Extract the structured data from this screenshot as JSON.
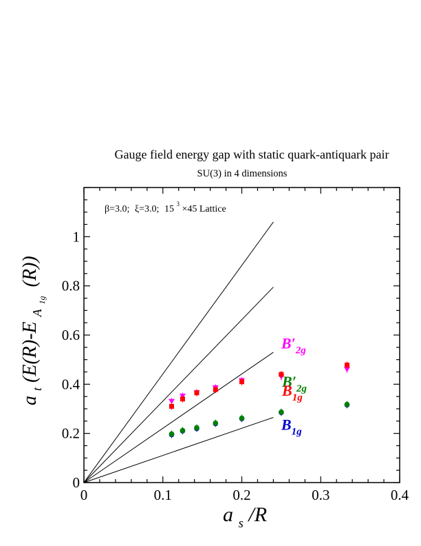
{
  "chart_data": {
    "type": "scatter",
    "title": "Gauge field energy gap with static quark-antiquark pair",
    "subtitle": "SU(3) in 4 dimensions",
    "annotation": {
      "beta_text": "β=3.0;",
      "xi_text": "ξ=3.0;",
      "lattice_base": "15",
      "lattice_exp": "3",
      "lattice_rest": "×45 Lattice"
    },
    "xlabel": {
      "main": "a",
      "sub": "s",
      "rest": "/R"
    },
    "ylabel": {
      "pre": "a",
      "sub_t": "t",
      "mid": "(E(R)-E",
      "sub_a": "A",
      "sub_1g": "1g",
      "post": "(R))"
    },
    "xlim": [
      0,
      0.4
    ],
    "ylim": [
      0,
      1.2
    ],
    "x_ticks": [
      {
        "value": 0,
        "label": "0"
      },
      {
        "value": 0.1,
        "label": "0.1"
      },
      {
        "value": 0.2,
        "label": "0.2"
      },
      {
        "value": 0.3,
        "label": "0.3"
      },
      {
        "value": 0.4,
        "label": "0.4"
      }
    ],
    "y_ticks": [
      {
        "value": 0,
        "label": "0"
      },
      {
        "value": 0.2,
        "label": "0.2"
      },
      {
        "value": 0.4,
        "label": "0.4"
      },
      {
        "value": 0.6,
        "label": "0.6"
      },
      {
        "value": 0.8,
        "label": "0.8"
      },
      {
        "value": 1.0,
        "label": "1"
      }
    ],
    "grid": false,
    "lines": [
      {
        "x": [
          0,
          0.24
        ],
        "y": [
          0,
          0.265
        ]
      },
      {
        "x": [
          0,
          0.24
        ],
        "y": [
          0,
          0.53
        ]
      },
      {
        "x": [
          0,
          0.24
        ],
        "y": [
          0,
          0.795
        ]
      },
      {
        "x": [
          0,
          0.24
        ],
        "y": [
          0,
          1.06
        ]
      }
    ],
    "series": [
      {
        "color": "#ff00ff",
        "marker": "triangle-down",
        "x": [
          0.1111,
          0.125,
          0.1429,
          0.1667,
          0.2,
          0.25,
          0.3333
        ],
        "y": [
          0.33,
          0.352,
          0.366,
          0.386,
          0.415,
          0.43,
          0.46
        ]
      },
      {
        "color": "#ff0000",
        "marker": "square",
        "x": [
          0.1111,
          0.125,
          0.1429,
          0.1667,
          0.2,
          0.25,
          0.3333
        ],
        "y": [
          0.31,
          0.34,
          0.365,
          0.378,
          0.41,
          0.44,
          0.478
        ]
      },
      {
        "color": "#0000cc",
        "marker": "circle",
        "x": [
          0.1111,
          0.125,
          0.1429,
          0.1667,
          0.2,
          0.25,
          0.3333
        ],
        "y": [
          0.195,
          0.21,
          0.22,
          0.24,
          0.26,
          0.285,
          0.316
        ]
      },
      {
        "color": "#008000",
        "marker": "circle",
        "x": [
          0.1111,
          0.125,
          0.1429,
          0.1667,
          0.2,
          0.25,
          0.3333
        ],
        "y": [
          0.198,
          0.212,
          0.223,
          0.242,
          0.262,
          0.287,
          0.318
        ]
      }
    ],
    "labels": [
      {
        "base": "B",
        "prime": "′",
        "sub": "2g",
        "color": "#ff00ff",
        "x": 0.25,
        "y": 0.545
      },
      {
        "base": "B",
        "prime": "′",
        "sub": "2g",
        "color": "#008000",
        "x": 0.251,
        "y": 0.39
      },
      {
        "base": "B",
        "prime": "",
        "sub": "1g",
        "color": "#ff0000",
        "x": 0.251,
        "y": 0.353
      },
      {
        "base": "B",
        "prime": "",
        "sub": "1g",
        "color": "#0000cc",
        "x": 0.25,
        "y": 0.215
      }
    ]
  }
}
